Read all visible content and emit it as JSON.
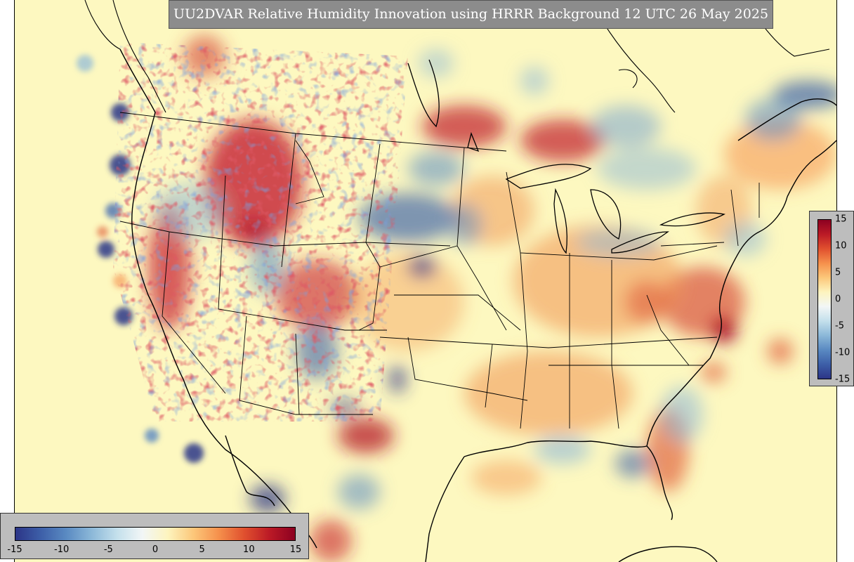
{
  "title": "UU2DVAR Relative Humidity Innovation using HRRR Background 12 UTC 26 May 2025",
  "map": {
    "region": "Continental United States",
    "background_color": "#fdf8c0",
    "boundary_color": "#000000"
  },
  "colorbar": {
    "min": -15,
    "max": 15,
    "ticks_horizontal": [
      "-15",
      "-10",
      "-5",
      "0",
      "5",
      "10",
      "15"
    ],
    "ticks_vertical": [
      "15",
      "10",
      "5",
      "0",
      "-5",
      "-10",
      "-15"
    ],
    "colors": [
      "#2c3587",
      "#3d5fa8",
      "#5a8ac2",
      "#8cb8d8",
      "#c4e0ec",
      "#f2f6f6",
      "#fdf4be",
      "#fcc77a",
      "#f5904c",
      "#e0502e",
      "#bb1a26",
      "#8c0021"
    ]
  }
}
